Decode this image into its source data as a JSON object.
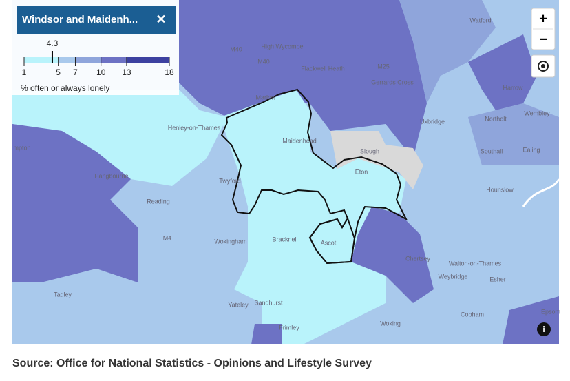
{
  "panel": {
    "title": "Windsor and Maidenh...",
    "close": "✕"
  },
  "legend": {
    "value": 4.3,
    "ticks": [
      1,
      5,
      7,
      10,
      13,
      18
    ],
    "colors": [
      "#b9f3fb",
      "#a9c9ec",
      "#8fa5db",
      "#6d72c4",
      "#3d41a0"
    ],
    "label": "% often or always lonely"
  },
  "controls": {
    "zoom_in": "+",
    "zoom_out": "−",
    "info": "i"
  },
  "places": [
    "M40",
    "High Wycombe",
    "M40",
    "Flackwell Heath",
    "M25",
    "Watford",
    "Gerrards Cross",
    "Harrow",
    "Marlow",
    "Wembley",
    "Henley-on-Thames",
    "Maidenhead",
    "Uxbridge",
    "Northolt",
    "Slough",
    "Southall",
    "Ealing",
    "mpton",
    "Eton",
    "Pangbourne",
    "Twyford",
    "Hounslow",
    "Reading",
    "M4",
    "Wokingham",
    "Bracknell",
    "Ascot",
    "Chertsey",
    "Walton-on-Thames",
    "Weybridge",
    "Esher",
    "Tadley",
    "Yateley",
    "Sandhurst",
    "Epsom",
    "Cobham",
    "Woking",
    "Frimley"
  ],
  "source": "Source: Office for National Statistics - Opinions and Lifestyle Survey"
}
